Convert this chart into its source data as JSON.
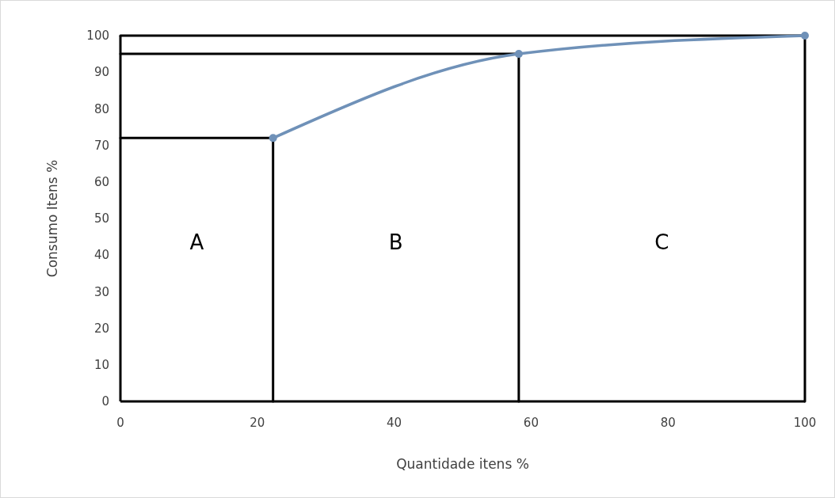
{
  "chart_data": {
    "type": "line",
    "xlabel": "Quantidade itens %",
    "ylabel": "Consumo Itens %",
    "xlim": [
      0,
      100
    ],
    "xticks": [
      0,
      20,
      40,
      60,
      80,
      100
    ],
    "ylim": [
      0,
      100
    ],
    "yticks": [
      0,
      10,
      20,
      30,
      40,
      50,
      60,
      70,
      80,
      90,
      100
    ],
    "grid": false,
    "line_style": "solid",
    "series": [
      {
        "color": "#000000",
        "marker": "none",
        "x": [
          0,
          22.3,
          22.3
        ],
        "values": [
          72,
          72,
          0
        ]
      },
      {
        "color": "#000000",
        "marker": "none",
        "x": [
          0,
          58.2,
          58.2
        ],
        "values": [
          95,
          95,
          0
        ]
      },
      {
        "color": "#000000",
        "marker": "none",
        "x": [
          0,
          100,
          100
        ],
        "values": [
          100,
          100,
          0
        ]
      },
      {
        "color": "#6f91b8",
        "marker": "circle",
        "x": [
          22.3,
          58.2,
          100
        ],
        "values": [
          72,
          95,
          100
        ]
      }
    ],
    "annotations": [
      "A",
      "B",
      "C"
    ]
  }
}
